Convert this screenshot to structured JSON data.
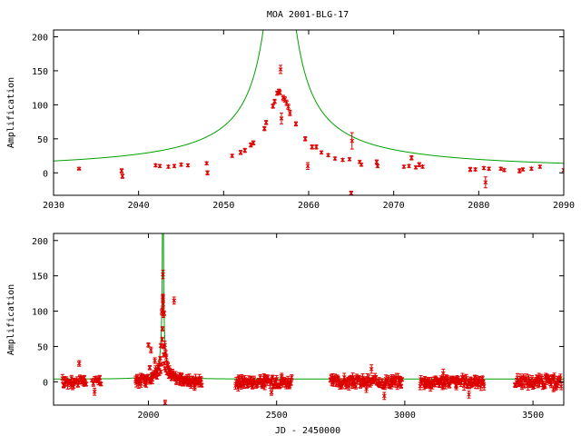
{
  "colors": {
    "model": "#00a000",
    "data": "#dd0000",
    "axes": "#000000"
  },
  "chart_data": [
    {
      "type": "scatter",
      "title": "MOA 2001-BLG-17",
      "xlabel": "",
      "ylabel": "Amplification",
      "xlim": [
        2030,
        2090
      ],
      "ylim": [
        -33,
        210
      ],
      "xticks": [
        2030,
        2040,
        2050,
        2060,
        2070,
        2080,
        2090
      ],
      "yticks": [
        0,
        50,
        100,
        150,
        200
      ],
      "model": {
        "name": "",
        "t0": 2056.6,
        "u0": 0.0085,
        "tE": 114,
        "baseline": 4
      },
      "points": [
        [
          2033,
          6,
          1
        ],
        [
          2038,
          3,
          3
        ],
        [
          2038.1,
          -5,
          3
        ],
        [
          2042,
          11,
          2
        ],
        [
          2042.5,
          10,
          2
        ],
        [
          2043.5,
          9,
          2
        ],
        [
          2044.2,
          10,
          2
        ],
        [
          2045,
          12,
          2
        ],
        [
          2045.8,
          11,
          2
        ],
        [
          2048,
          14,
          2
        ],
        [
          2048.1,
          0,
          3
        ],
        [
          2051,
          25,
          2
        ],
        [
          2052,
          30,
          3
        ],
        [
          2052.5,
          33,
          3
        ],
        [
          2053.2,
          41,
          3
        ],
        [
          2053.5,
          44,
          3
        ],
        [
          2054.8,
          65,
          3
        ],
        [
          2055,
          74,
          3
        ],
        [
          2055.8,
          98,
          3
        ],
        [
          2056.0,
          105,
          3
        ],
        [
          2056.3,
          117,
          3
        ],
        [
          2056.5,
          120,
          3
        ],
        [
          2056.6,
          118,
          3
        ],
        [
          2056.7,
          152,
          6
        ],
        [
          2056.8,
          80,
          8
        ],
        [
          2057.0,
          110,
          4
        ],
        [
          2057.2,
          108,
          4
        ],
        [
          2057.4,
          103,
          4
        ],
        [
          2057.6,
          97,
          4
        ],
        [
          2057.8,
          88,
          4
        ],
        [
          2058.5,
          72,
          3
        ],
        [
          2059.6,
          50,
          3
        ],
        [
          2059.9,
          10,
          5
        ],
        [
          2060.4,
          38,
          3
        ],
        [
          2060.9,
          38,
          3
        ],
        [
          2061.5,
          30,
          2
        ],
        [
          2062.3,
          26,
          2
        ],
        [
          2063.1,
          21,
          2
        ],
        [
          2064.0,
          19,
          2
        ],
        [
          2064.8,
          20,
          2
        ],
        [
          2065.1,
          47,
          12
        ],
        [
          2065.0,
          -30,
          3
        ],
        [
          2066.0,
          16,
          2
        ],
        [
          2066.2,
          12,
          2
        ],
        [
          2068.0,
          16,
          3
        ],
        [
          2068.1,
          10,
          2
        ],
        [
          2071.2,
          9,
          2
        ],
        [
          2071.8,
          10,
          2
        ],
        [
          2072.1,
          22,
          3
        ],
        [
          2072.6,
          8,
          2
        ],
        [
          2073.0,
          12,
          3
        ],
        [
          2073.4,
          9,
          2
        ],
        [
          2079,
          5,
          3
        ],
        [
          2079.6,
          5,
          2
        ],
        [
          2080.6,
          7,
          2
        ],
        [
          2080.8,
          -14,
          8
        ],
        [
          2081.2,
          6,
          2
        ],
        [
          2082.6,
          6,
          2
        ],
        [
          2083.0,
          4,
          2
        ],
        [
          2084.8,
          3,
          3
        ],
        [
          2085.2,
          5,
          2
        ],
        [
          2086.2,
          6,
          2
        ],
        [
          2087.2,
          9,
          2
        ],
        [
          2090.0,
          4,
          2
        ]
      ]
    },
    {
      "type": "scatter",
      "title": "",
      "xlabel": "JD - 2450000",
      "ylabel": "Amplification",
      "xlim": [
        1630,
        3620
      ],
      "ylim": [
        -33,
        210
      ],
      "xticks": [
        2000,
        2500,
        3000,
        3500
      ],
      "yticks": [
        0,
        50,
        100,
        150,
        200
      ],
      "model": {
        "name": "",
        "t0": 2056.6,
        "u0": 0.0085,
        "tE": 114,
        "baseline": 4
      },
      "points": [
        [
          1670,
          -5,
          3
        ],
        [
          1680,
          3,
          4
        ],
        [
          1690,
          0,
          3
        ],
        [
          1700,
          5,
          4
        ],
        [
          1710,
          2,
          3
        ],
        [
          1720,
          0,
          3
        ],
        [
          1730,
          26,
          4
        ],
        [
          1740,
          3,
          5
        ],
        [
          1750,
          6,
          3
        ],
        [
          1790,
          -14,
          5
        ],
        [
          1800,
          4,
          4
        ],
        [
          1810,
          6,
          3
        ],
        [
          1960,
          4,
          3
        ],
        [
          1970,
          8,
          4
        ],
        [
          1980,
          6,
          3
        ],
        [
          1990,
          5,
          3
        ],
        [
          2000,
          52,
          3
        ],
        [
          2005,
          20,
          3
        ],
        [
          2010,
          45,
          4
        ],
        [
          2015,
          10,
          3
        ],
        [
          2020,
          12,
          4
        ],
        [
          2025,
          30,
          4
        ],
        [
          2033,
          6,
          2
        ],
        [
          2042,
          11,
          2
        ],
        [
          2048,
          14,
          2
        ],
        [
          2051,
          25,
          2
        ],
        [
          2054,
          60,
          3
        ],
        [
          2055,
          75,
          3
        ],
        [
          2056,
          102,
          4
        ],
        [
          2056.5,
          120,
          4
        ],
        [
          2056.7,
          152,
          6
        ],
        [
          2056.8,
          118,
          5
        ],
        [
          2057,
          110,
          4
        ],
        [
          2058,
          95,
          4
        ],
        [
          2059,
          50,
          3
        ],
        [
          2060,
          38,
          3
        ],
        [
          2062,
          26,
          2
        ],
        [
          2064,
          19,
          2
        ],
        [
          2065,
          -30,
          4
        ],
        [
          2068,
          16,
          2
        ],
        [
          2072,
          12,
          2
        ],
        [
          2080,
          7,
          2
        ],
        [
          2090,
          4,
          2
        ],
        [
          2100,
          115,
          5
        ],
        [
          2105,
          5,
          4
        ],
        [
          2120,
          8,
          5
        ],
        [
          2140,
          3,
          4
        ],
        [
          2160,
          6,
          5
        ],
        [
          2180,
          -8,
          4
        ],
        [
          2200,
          2,
          3
        ],
        [
          2350,
          -8,
          5
        ],
        [
          2370,
          4,
          4
        ],
        [
          2400,
          2,
          5
        ],
        [
          2420,
          -5,
          4
        ],
        [
          2450,
          6,
          5
        ],
        [
          2480,
          -15,
          4
        ],
        [
          2500,
          4,
          5
        ],
        [
          2520,
          8,
          4
        ],
        [
          2550,
          -3,
          4
        ],
        [
          2720,
          3,
          4
        ],
        [
          2750,
          -5,
          5
        ],
        [
          2800,
          4,
          4
        ],
        [
          2850,
          -10,
          5
        ],
        [
          2870,
          18,
          6
        ],
        [
          2900,
          2,
          4
        ],
        [
          2920,
          -20,
          5
        ],
        [
          2950,
          6,
          4
        ],
        [
          2980,
          3,
          5
        ],
        [
          3080,
          2,
          4
        ],
        [
          3100,
          -8,
          5
        ],
        [
          3150,
          12,
          6
        ],
        [
          3200,
          -5,
          4
        ],
        [
          3250,
          -18,
          5
        ],
        [
          3280,
          5,
          4
        ],
        [
          3300,
          0,
          4
        ],
        [
          3450,
          6,
          5
        ],
        [
          3480,
          -3,
          4
        ],
        [
          3520,
          4,
          5
        ],
        [
          3550,
          8,
          4
        ],
        [
          3580,
          -10,
          4
        ],
        [
          3600,
          2,
          4
        ]
      ],
      "clusters": [
        {
          "start": 1665,
          "end": 1760,
          "step": 4,
          "spread": 6,
          "err": 4
        },
        {
          "start": 1780,
          "end": 1815,
          "step": 5,
          "spread": 5,
          "err": 3
        },
        {
          "start": 1950,
          "end": 2210,
          "step": 3,
          "spread": 6,
          "err": 4
        },
        {
          "start": 2340,
          "end": 2560,
          "step": 3,
          "spread": 7,
          "err": 4
        },
        {
          "start": 2710,
          "end": 2990,
          "step": 3,
          "spread": 7,
          "err": 4
        },
        {
          "start": 3060,
          "end": 3310,
          "step": 3,
          "spread": 7,
          "err": 4
        },
        {
          "start": 3430,
          "end": 3610,
          "step": 3,
          "spread": 7,
          "err": 4
        }
      ]
    }
  ]
}
